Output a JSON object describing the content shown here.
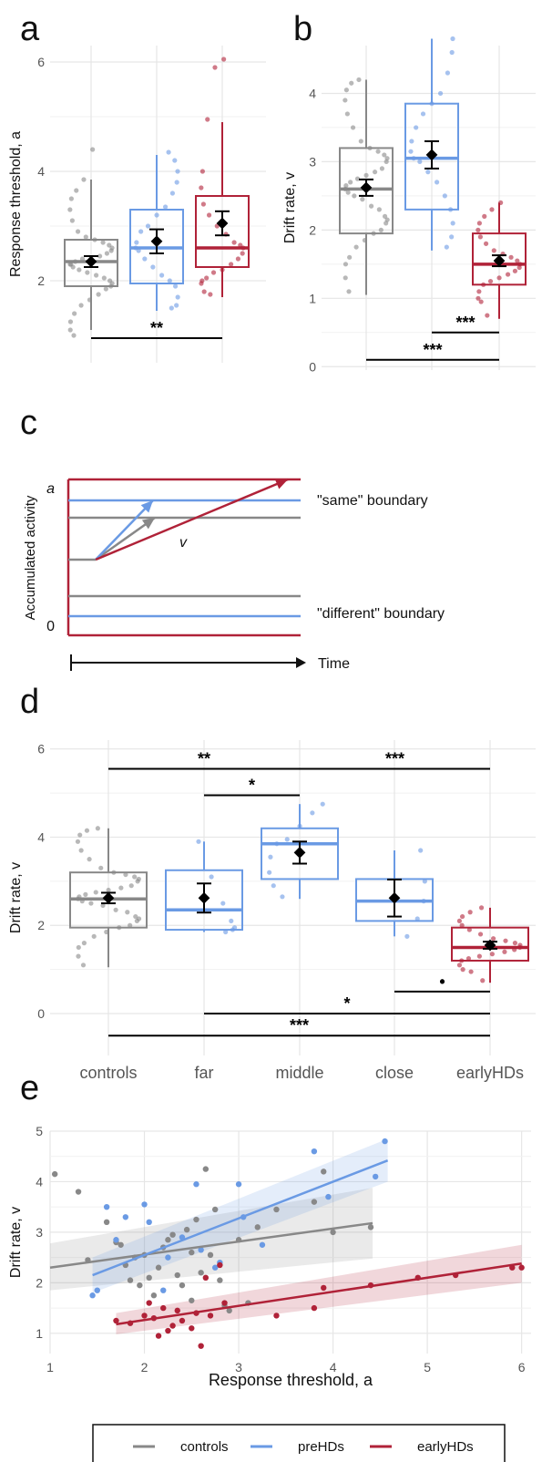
{
  "panel_letters": [
    "a",
    "b",
    "c",
    "d",
    "e"
  ],
  "colors": {
    "controls": "#888888",
    "preHDs": "#6a9ae4",
    "earlyHDs": "#b02238",
    "grid": "#e6e6e6",
    "axis_text": "#555555",
    "sig": "#000000"
  },
  "legend": [
    {
      "key": "controls",
      "label": "controls"
    },
    {
      "key": "preHDs",
      "label": "preHDs"
    },
    {
      "key": "earlyHDs",
      "label": "earlyHDs"
    }
  ],
  "schematic": {
    "ylabel": "Accumulated activity",
    "top_label": "a",
    "bottom_label": "0",
    "drift_label": "v",
    "same_label": "\"same\" boundary",
    "different_label": "\"different\" boundary",
    "time_label": "Time"
  },
  "chart_data": [
    {
      "panel": "a",
      "type": "box",
      "ylabel": "Response threshold, a",
      "xlabel": "",
      "ylim": [
        0.5,
        6.3
      ],
      "yticks": [
        2,
        4,
        6
      ],
      "groups": [
        {
          "key": "controls",
          "box": [
            1.1,
            1.9,
            2.35,
            2.75,
            3.85
          ],
          "mean": 2.35,
          "se": 0.1,
          "points": [
            1.0,
            1.1,
            1.25,
            1.4,
            1.55,
            1.65,
            1.75,
            1.85,
            1.9,
            1.95,
            2.0,
            2.05,
            2.1,
            2.15,
            2.2,
            2.25,
            2.3,
            2.3,
            2.35,
            2.4,
            2.4,
            2.45,
            2.5,
            2.55,
            2.6,
            2.65,
            2.7,
            2.75,
            2.8,
            2.9,
            3.1,
            3.3,
            3.5,
            3.65,
            3.85,
            4.4
          ]
        },
        {
          "key": "preHDs",
          "box": [
            1.45,
            1.95,
            2.6,
            3.3,
            4.3
          ],
          "mean": 2.72,
          "se": 0.22,
          "points": [
            1.5,
            1.55,
            1.7,
            1.9,
            2.0,
            2.1,
            2.25,
            2.4,
            2.55,
            2.6,
            2.7,
            2.9,
            3.0,
            3.2,
            3.35,
            3.6,
            3.8,
            4.0,
            4.2,
            4.35
          ]
        },
        {
          "key": "earlyHDs",
          "box": [
            1.7,
            2.25,
            2.6,
            3.55,
            4.9
          ],
          "mean": 3.05,
          "se": 0.22,
          "points": [
            1.75,
            1.8,
            1.95,
            2.0,
            2.05,
            2.15,
            2.2,
            2.3,
            2.4,
            2.5,
            2.6,
            2.65,
            2.7,
            2.85,
            3.0,
            3.2,
            3.4,
            3.7,
            4.0,
            4.95,
            5.9,
            6.05
          ]
        }
      ],
      "significance": [
        {
          "from": "controls",
          "to": "earlyHDs",
          "y": 0.95,
          "label": "**"
        }
      ]
    },
    {
      "panel": "b",
      "type": "box",
      "ylabel": "Drift rate, v",
      "xlabel": "",
      "ylim": [
        -0.05,
        4.7
      ],
      "yticks": [
        0,
        1,
        2,
        3,
        4
      ],
      "groups": [
        {
          "key": "controls",
          "box": [
            1.05,
            1.95,
            2.6,
            3.2,
            4.2
          ],
          "mean": 2.62,
          "se": 0.12,
          "points": [
            1.1,
            1.3,
            1.5,
            1.6,
            1.75,
            1.85,
            1.95,
            2.0,
            2.1,
            2.15,
            2.2,
            2.3,
            2.35,
            2.45,
            2.5,
            2.55,
            2.6,
            2.65,
            2.7,
            2.75,
            2.8,
            2.85,
            2.9,
            3.0,
            3.05,
            3.1,
            3.15,
            3.2,
            3.3,
            3.5,
            3.7,
            3.9,
            4.05,
            4.15,
            4.2
          ]
        },
        {
          "key": "preHDs",
          "box": [
            1.7,
            2.3,
            3.05,
            3.85,
            4.8
          ],
          "mean": 3.1,
          "se": 0.2,
          "points": [
            1.75,
            1.9,
            2.1,
            2.3,
            2.5,
            2.7,
            2.85,
            3.0,
            3.05,
            3.15,
            3.3,
            3.5,
            3.7,
            3.85,
            4.0,
            4.3,
            4.6,
            4.8
          ]
        },
        {
          "key": "earlyHDs",
          "box": [
            0.7,
            1.2,
            1.5,
            1.95,
            2.4
          ],
          "mean": 1.55,
          "se": 0.08,
          "points": [
            0.75,
            0.95,
            1.0,
            1.1,
            1.2,
            1.25,
            1.3,
            1.35,
            1.4,
            1.45,
            1.5,
            1.55,
            1.6,
            1.65,
            1.7,
            1.8,
            1.9,
            2.0,
            2.1,
            2.2,
            2.3,
            2.4
          ]
        }
      ],
      "significance": [
        {
          "from": "preHDs",
          "to": "earlyHDs",
          "y": 0.5,
          "label": "***"
        },
        {
          "from": "controls",
          "to": "earlyHDs",
          "y": 0.1,
          "label": "***"
        }
      ]
    },
    {
      "panel": "d",
      "type": "box",
      "ylabel": "Drift rate, v",
      "xlabel": "",
      "categories": [
        "controls",
        "far",
        "middle",
        "close",
        "earlyHDs"
      ],
      "ylim": [
        -0.95,
        6.2
      ],
      "yticks": [
        0,
        2,
        4,
        6
      ],
      "groups": [
        {
          "key": "controls",
          "color_key": "controls",
          "box": [
            1.05,
            1.95,
            2.6,
            3.2,
            4.2
          ],
          "mean": 2.62,
          "se": 0.12,
          "points": [
            1.1,
            1.3,
            1.5,
            1.6,
            1.75,
            1.85,
            1.95,
            2.0,
            2.1,
            2.15,
            2.2,
            2.3,
            2.35,
            2.45,
            2.5,
            2.55,
            2.6,
            2.65,
            2.7,
            2.75,
            2.8,
            2.85,
            2.9,
            3.0,
            3.05,
            3.1,
            3.15,
            3.2,
            3.3,
            3.5,
            3.7,
            3.9,
            4.05,
            4.15,
            4.2
          ]
        },
        {
          "key": "far",
          "color_key": "preHDs",
          "box": [
            1.85,
            1.9,
            2.35,
            3.25,
            3.9
          ],
          "mean": 2.62,
          "se": 0.33,
          "points": [
            1.85,
            1.9,
            1.95,
            2.1,
            2.5,
            3.1,
            3.9
          ]
        },
        {
          "key": "middle",
          "color_key": "preHDs",
          "box": [
            2.6,
            3.05,
            3.85,
            4.2,
            4.75
          ],
          "mean": 3.65,
          "se": 0.25,
          "points": [
            2.65,
            2.9,
            3.2,
            3.55,
            3.85,
            3.95,
            4.25,
            4.55,
            4.75
          ]
        },
        {
          "key": "close",
          "color_key": "preHDs",
          "box": [
            1.75,
            2.1,
            2.55,
            3.05,
            3.7
          ],
          "mean": 2.62,
          "se": 0.42,
          "points": [
            1.75,
            2.15,
            2.55,
            3.0,
            3.7
          ]
        },
        {
          "key": "earlyHDs",
          "color_key": "earlyHDs",
          "box": [
            0.7,
            1.2,
            1.5,
            1.95,
            2.4
          ],
          "mean": 1.55,
          "se": 0.08,
          "points": [
            0.75,
            0.95,
            1.0,
            1.1,
            1.2,
            1.25,
            1.3,
            1.35,
            1.4,
            1.45,
            1.5,
            1.55,
            1.6,
            1.65,
            1.7,
            1.8,
            1.9,
            2.0,
            2.1,
            2.2,
            2.3,
            2.4
          ]
        }
      ],
      "significance": [
        {
          "from": "controls",
          "to": "middle",
          "y": 5.55,
          "label": "**"
        },
        {
          "from": "far",
          "to": "middle",
          "y": 4.95,
          "label": "*"
        },
        {
          "from": "middle",
          "to": "earlyHDs",
          "y": 5.55,
          "label": "***"
        },
        {
          "from": "close",
          "to": "earlyHDs",
          "y": 0.5,
          "label": "•"
        },
        {
          "from": "far",
          "to": "earlyHDs",
          "y": 0.0,
          "label": "*"
        },
        {
          "from": "controls",
          "to": "earlyHDs",
          "y": -0.5,
          "label": "***"
        }
      ]
    },
    {
      "panel": "e",
      "type": "scatter",
      "xlabel": "Response threshold, a",
      "ylabel": "Drift rate, v",
      "xlim": [
        1.0,
        6.1
      ],
      "ylim": [
        0.6,
        5.0
      ],
      "xticks": [
        1,
        2,
        3,
        4,
        5,
        6
      ],
      "yticks": [
        1,
        2,
        3,
        4,
        5
      ],
      "series": [
        {
          "name": "controls",
          "key": "controls",
          "fit": {
            "x": [
              1.0,
              4.42
            ],
            "y": [
              2.3,
              3.18
            ]
          },
          "band": {
            "lower_start": 1.85,
            "upper_start": 2.78,
            "lower_end": 2.48,
            "upper_end": 3.88
          },
          "points": [
            [
              1.05,
              4.15
            ],
            [
              1.3,
              3.8
            ],
            [
              1.4,
              2.45
            ],
            [
              1.6,
              3.2
            ],
            [
              1.7,
              2.8
            ],
            [
              1.75,
              2.75
            ],
            [
              1.8,
              2.35
            ],
            [
              1.85,
              2.05
            ],
            [
              1.9,
              2.5
            ],
            [
              1.95,
              1.95
            ],
            [
              2.0,
              2.55
            ],
            [
              2.05,
              2.1
            ],
            [
              2.1,
              1.75
            ],
            [
              2.15,
              2.3
            ],
            [
              2.2,
              2.7
            ],
            [
              2.25,
              2.85
            ],
            [
              2.3,
              2.95
            ],
            [
              2.35,
              2.15
            ],
            [
              2.4,
              1.95
            ],
            [
              2.45,
              3.05
            ],
            [
              2.5,
              2.6
            ],
            [
              2.5,
              1.65
            ],
            [
              2.55,
              3.25
            ],
            [
              2.6,
              2.2
            ],
            [
              2.65,
              4.25
            ],
            [
              2.7,
              2.55
            ],
            [
              2.75,
              3.45
            ],
            [
              2.8,
              2.05
            ],
            [
              2.85,
              1.55
            ],
            [
              2.9,
              1.45
            ],
            [
              3.0,
              2.85
            ],
            [
              3.1,
              1.6
            ],
            [
              3.2,
              3.1
            ],
            [
              3.4,
              3.45
            ],
            [
              3.8,
              3.6
            ],
            [
              3.9,
              4.2
            ],
            [
              4.0,
              3.0
            ],
            [
              4.4,
              3.1
            ]
          ]
        },
        {
          "name": "preHDs",
          "key": "preHDs",
          "fit": {
            "x": [
              1.45,
              4.58
            ],
            "y": [
              2.15,
              4.42
            ]
          },
          "band": {
            "lower_start": 1.8,
            "upper_start": 2.5,
            "lower_end": 4.0,
            "upper_end": 4.85
          },
          "points": [
            [
              1.45,
              1.75
            ],
            [
              1.5,
              1.85
            ],
            [
              1.6,
              3.5
            ],
            [
              1.7,
              2.85
            ],
            [
              1.8,
              3.3
            ],
            [
              2.0,
              3.55
            ],
            [
              2.05,
              3.2
            ],
            [
              2.2,
              1.85
            ],
            [
              2.25,
              2.5
            ],
            [
              2.4,
              2.9
            ],
            [
              2.55,
              3.95
            ],
            [
              2.6,
              2.65
            ],
            [
              2.75,
              2.3
            ],
            [
              2.8,
              2.4
            ],
            [
              3.0,
              3.95
            ],
            [
              3.05,
              3.3
            ],
            [
              3.25,
              2.75
            ],
            [
              3.8,
              4.6
            ],
            [
              3.95,
              3.7
            ],
            [
              4.45,
              4.1
            ],
            [
              4.55,
              4.8
            ]
          ]
        },
        {
          "name": "earlyHDs",
          "key": "earlyHDs",
          "fit": {
            "x": [
              1.7,
              6.0
            ],
            "y": [
              1.18,
              2.38
            ]
          },
          "band": {
            "lower_start": 0.98,
            "upper_start": 1.4,
            "lower_end": 2.0,
            "upper_end": 2.75
          },
          "points": [
            [
              1.7,
              1.25
            ],
            [
              1.85,
              1.2
            ],
            [
              2.0,
              1.35
            ],
            [
              2.05,
              1.6
            ],
            [
              2.1,
              1.3
            ],
            [
              2.15,
              0.95
            ],
            [
              2.2,
              1.5
            ],
            [
              2.25,
              1.05
            ],
            [
              2.3,
              1.15
            ],
            [
              2.35,
              1.45
            ],
            [
              2.4,
              1.25
            ],
            [
              2.5,
              1.1
            ],
            [
              2.55,
              1.4
            ],
            [
              2.6,
              0.75
            ],
            [
              2.65,
              2.1
            ],
            [
              2.7,
              1.35
            ],
            [
              2.8,
              2.35
            ],
            [
              2.85,
              1.6
            ],
            [
              3.4,
              1.35
            ],
            [
              3.8,
              1.5
            ],
            [
              3.9,
              1.9
            ],
            [
              4.4,
              1.95
            ],
            [
              4.9,
              2.1
            ],
            [
              5.3,
              2.15
            ],
            [
              5.9,
              2.3
            ],
            [
              6.0,
              2.3
            ]
          ]
        }
      ]
    }
  ]
}
